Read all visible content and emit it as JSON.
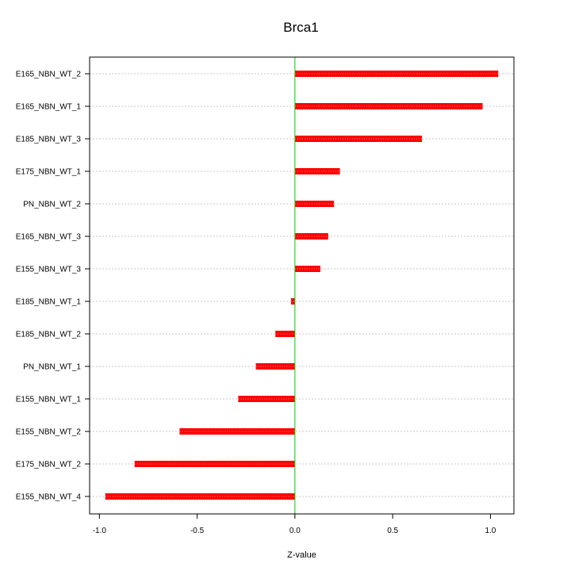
{
  "chart_data": {
    "type": "bar",
    "orientation": "horizontal",
    "title": "Brca1",
    "xlabel": "Z-value",
    "ylabel": "",
    "xlim": [
      -1.05,
      1.12
    ],
    "xticks": [
      -1.0,
      -0.5,
      0.0,
      0.5,
      1.0
    ],
    "xtick_labels": [
      "-1.0",
      "-0.5",
      "0.0",
      "0.5",
      "1.0"
    ],
    "reference_line": 0.0,
    "grid": "horizontal dotted",
    "categories": [
      "E165_NBN_WT_2",
      "E165_NBN_WT_1",
      "E185_NBN_WT_3",
      "E175_NBN_WT_1",
      "PN_NBN_WT_2",
      "E165_NBN_WT_3",
      "E155_NBN_WT_3",
      "E185_NBN_WT_1",
      "E185_NBN_WT_2",
      "PN_NBN_WT_1",
      "E155_NBN_WT_1",
      "E155_NBN_WT_2",
      "E175_NBN_WT_2",
      "E155_NBN_WT_4"
    ],
    "values": [
      1.04,
      0.96,
      0.65,
      0.23,
      0.2,
      0.17,
      0.13,
      -0.02,
      -0.1,
      -0.2,
      -0.29,
      -0.59,
      -0.82,
      -0.97
    ],
    "bar_color": "#ff0000",
    "reference_line_color": "#00cc00",
    "grid_color": "#c8c8c8"
  }
}
